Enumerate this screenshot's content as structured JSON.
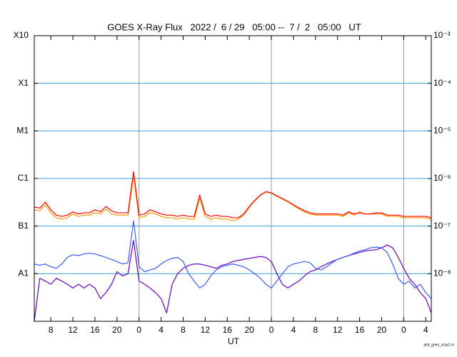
{
  "chart_data": {
    "type": "line",
    "title": "GOES X-Ray Flux   2022 /  6 / 29   05:00 --  7 /  2   05:00   UT",
    "x_label": "UT",
    "footnote": "plot_goes_xray2.rn",
    "ylog": true,
    "grid": true,
    "grid_color": "#3ba0e0",
    "day_line_color": "#999999",
    "xlim": [
      0,
      72
    ],
    "xticks": [
      {
        "value": 3,
        "label": "8"
      },
      {
        "value": 7,
        "label": "12"
      },
      {
        "value": 11,
        "label": "16"
      },
      {
        "value": 15,
        "label": "20"
      },
      {
        "value": 19,
        "label": "0"
      },
      {
        "value": 23,
        "label": "4"
      },
      {
        "value": 27,
        "label": "8"
      },
      {
        "value": 31,
        "label": "12"
      },
      {
        "value": 35,
        "label": "16"
      },
      {
        "value": 39,
        "label": "20"
      },
      {
        "value": 43,
        "label": "0"
      },
      {
        "value": 47,
        "label": "4"
      },
      {
        "value": 51,
        "label": "8"
      },
      {
        "value": 55,
        "label": "12"
      },
      {
        "value": 59,
        "label": "16"
      },
      {
        "value": 63,
        "label": "20"
      },
      {
        "value": 67,
        "label": "0"
      },
      {
        "value": 71,
        "label": "4"
      }
    ],
    "ylim": [
      1e-09,
      0.001
    ],
    "yticks": [
      {
        "value": 0.001,
        "label": "X10"
      },
      {
        "value": 0.0001,
        "label": "X1"
      },
      {
        "value": 1e-05,
        "label": "M1"
      },
      {
        "value": 1e-06,
        "label": "C1"
      },
      {
        "value": 1e-07,
        "label": "B1"
      },
      {
        "value": 1e-08,
        "label": "A1"
      }
    ],
    "y2lim": [
      1e-09,
      0.001
    ],
    "y2ticks": [
      {
        "value": 0.001,
        "label": "10⁻³"
      },
      {
        "value": 0.0001,
        "label": "10⁻⁴"
      },
      {
        "value": 1e-05,
        "label": "10⁻⁵"
      },
      {
        "value": 1e-06,
        "label": "10⁻⁶"
      },
      {
        "value": 1e-07,
        "label": "10⁻⁷"
      },
      {
        "value": 1e-08,
        "label": "10⁻⁸"
      }
    ],
    "x": [
      0,
      1,
      2,
      3,
      4,
      5,
      6,
      7,
      8,
      9,
      10,
      11,
      12,
      13,
      14,
      15,
      16,
      17,
      18,
      19,
      20,
      21,
      22,
      23,
      24,
      25,
      26,
      27,
      28,
      29,
      30,
      31,
      32,
      33,
      34,
      35,
      36,
      37,
      38,
      39,
      40,
      41,
      42,
      43,
      44,
      45,
      46,
      47,
      48,
      49,
      50,
      51,
      52,
      53,
      54,
      55,
      56,
      57,
      58,
      59,
      60,
      61,
      62,
      63,
      64,
      65,
      66,
      67,
      68,
      69,
      70,
      71,
      72
    ],
    "series": [
      {
        "color": "#6a00c8",
        "values": [
          1e-09,
          8e-09,
          7e-09,
          6e-09,
          8e-09,
          7e-09,
          6e-09,
          5e-09,
          6e-09,
          5e-09,
          6e-09,
          5e-09,
          3e-09,
          4e-09,
          6e-09,
          1.1e-08,
          9e-09,
          1e-08,
          5e-08,
          7e-09,
          6e-09,
          5e-09,
          4e-09,
          3e-09,
          1.5e-09,
          6e-09,
          1e-08,
          1.3e-08,
          1.5e-08,
          1.6e-08,
          1.6e-08,
          1.5e-08,
          1.4e-08,
          1.3e-08,
          1.5e-08,
          1.6e-08,
          1.8e-08,
          1.9e-08,
          2e-08,
          2.1e-08,
          2.2e-08,
          2.3e-08,
          2.2e-08,
          1.8e-08,
          1e-08,
          6e-09,
          5e-09,
          6e-09,
          7e-09,
          9e-09,
          1.1e-08,
          1.2e-08,
          1.4e-08,
          1.6e-08,
          1.8e-08,
          2e-08,
          2.2e-08,
          2.4e-08,
          2.6e-08,
          2.8e-08,
          3e-08,
          3.1e-08,
          3.2e-08,
          3.5e-08,
          4e-08,
          3.5e-08,
          2.2e-08,
          1.3e-08,
          8e-09,
          6e-09,
          4e-09,
          3e-09,
          1.5e-09
        ]
      },
      {
        "color": "#3a5cff",
        "values": [
          1.6e-08,
          1.5e-08,
          1.6e-08,
          1.4e-08,
          1.3e-08,
          1.6e-08,
          2.2e-08,
          2.5e-08,
          2.4e-08,
          2.6e-08,
          2.7e-08,
          2.6e-08,
          2.4e-08,
          2.2e-08,
          2e-08,
          1.8e-08,
          1.6e-08,
          1.7e-08,
          1.3e-07,
          1.4e-08,
          1.1e-08,
          1.2e-08,
          1.3e-08,
          1.6e-08,
          1.9e-08,
          2.1e-08,
          2.2e-08,
          1.8e-08,
          1e-08,
          7e-09,
          5e-09,
          6e-09,
          9e-09,
          1.2e-08,
          1.4e-08,
          1.5e-08,
          1.6e-08,
          1.5e-08,
          1.4e-08,
          1.2e-08,
          1e-08,
          8e-09,
          6e-09,
          5e-09,
          7e-09,
          1e-08,
          1.4e-08,
          1.6e-08,
          1.7e-08,
          1.8e-08,
          1.7e-08,
          1.3e-08,
          1.2e-08,
          1.4e-08,
          1.7e-08,
          2e-08,
          2.2e-08,
          2.4e-08,
          2.7e-08,
          3e-08,
          3.2e-08,
          3.5e-08,
          3.6e-08,
          3.5e-08,
          2.8e-08,
          1.6e-08,
          8e-09,
          6e-09,
          7e-09,
          5e-09,
          6e-09,
          4e-09,
          3e-09
        ]
      },
      {
        "color": "#ff9900",
        "values": [
          2.2e-07,
          2.1e-07,
          2.8e-07,
          1.9e-07,
          1.5e-07,
          1.4e-07,
          1.5e-07,
          1.8e-07,
          1.6e-07,
          1.7e-07,
          1.7e-07,
          1.9e-07,
          1.8e-07,
          2.3e-07,
          1.8e-07,
          1.7e-07,
          1.7e-07,
          1.7e-07,
          1.1e-06,
          1.5e-07,
          1.6e-07,
          1.9e-07,
          1.8e-07,
          1.6e-07,
          1.5e-07,
          1.5e-07,
          1.4e-07,
          1.5e-07,
          1.4e-07,
          1.4e-07,
          3.8e-07,
          1.6e-07,
          1.4e-07,
          1.5e-07,
          1.4e-07,
          1.4e-07,
          1.3e-07,
          1.4e-07,
          1.7e-07,
          2.5e-07,
          3.4e-07,
          4.4e-07,
          5.2e-07,
          4.9e-07,
          4.2e-07,
          3.7e-07,
          3.2e-07,
          2.7e-07,
          2.3e-07,
          2e-07,
          1.8e-07,
          1.7e-07,
          1.7e-07,
          1.7e-07,
          1.7e-07,
          1.7e-07,
          1.6e-07,
          1.9e-07,
          1.7e-07,
          2e-07,
          1.8e-07,
          1.8e-07,
          1.8e-07,
          1.8e-07,
          1.6e-07,
          1.6e-07,
          1.6e-07,
          1.5e-07,
          1.5e-07,
          1.5e-07,
          1.5e-07,
          1.5e-07,
          1.4e-07
        ]
      },
      {
        "color": "#ff0000",
        "values": [
          2.5e-07,
          2.4e-07,
          3.2e-07,
          2.2e-07,
          1.7e-07,
          1.6e-07,
          1.7e-07,
          2e-07,
          1.8e-07,
          1.9e-07,
          1.9e-07,
          2.2e-07,
          2e-07,
          2.6e-07,
          2.1e-07,
          1.9e-07,
          1.9e-07,
          1.9e-07,
          1.4e-06,
          1.7e-07,
          1.8e-07,
          2.2e-07,
          2e-07,
          1.8e-07,
          1.7e-07,
          1.7e-07,
          1.6e-07,
          1.7e-07,
          1.6e-07,
          1.6e-07,
          4.5e-07,
          1.8e-07,
          1.6e-07,
          1.7e-07,
          1.6e-07,
          1.6e-07,
          1.5e-07,
          1.5e-07,
          1.8e-07,
          2.6e-07,
          3.5e-07,
          4.5e-07,
          5.3e-07,
          5e-07,
          4.3e-07,
          3.8e-07,
          3.3e-07,
          2.8e-07,
          2.4e-07,
          2.1e-07,
          1.9e-07,
          1.8e-07,
          1.8e-07,
          1.8e-07,
          1.8e-07,
          1.8e-07,
          1.7e-07,
          2e-07,
          1.8e-07,
          1.9e-07,
          1.8e-07,
          1.8e-07,
          1.9e-07,
          1.9e-07,
          1.7e-07,
          1.7e-07,
          1.7e-07,
          1.6e-07,
          1.6e-07,
          1.6e-07,
          1.6e-07,
          1.6e-07,
          1.5e-07
        ]
      }
    ]
  }
}
